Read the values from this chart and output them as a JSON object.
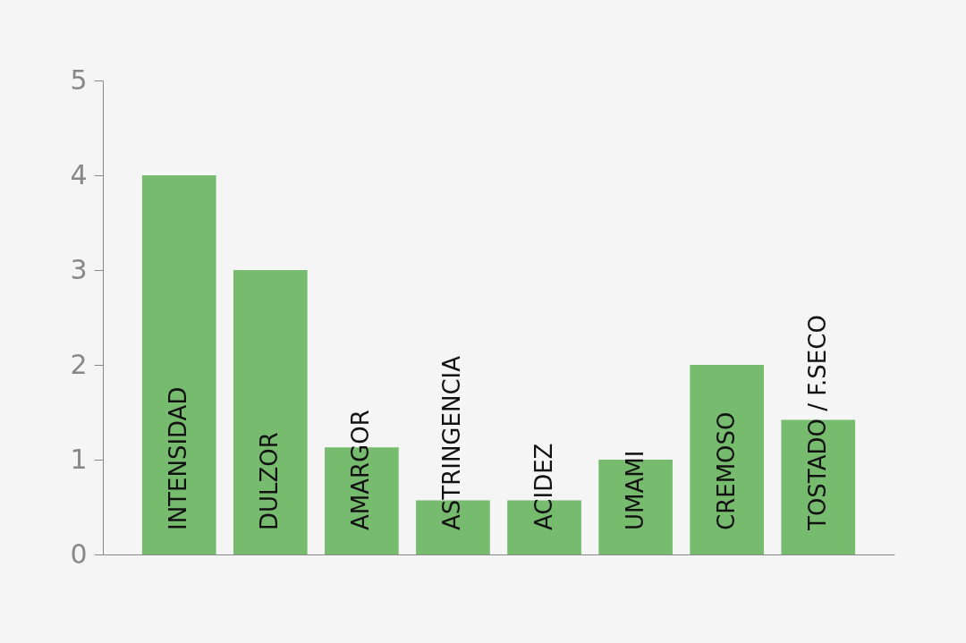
{
  "chart_data": {
    "type": "bar",
    "categories": [
      "INTENSIDAD",
      "DULZOR",
      "AMARGOR",
      "ASTRINGENCIA",
      "ACIDEZ",
      "UMAMI",
      "CREMOSO",
      "TOSTADO / F.SECO"
    ],
    "values": [
      4,
      3,
      1.13,
      0.57,
      0.57,
      1,
      2,
      1.42
    ],
    "color": "#77bc6e",
    "ylim": [
      0,
      5
    ],
    "yticks": [
      0,
      1,
      2,
      3,
      4,
      5
    ],
    "grid": false
  }
}
